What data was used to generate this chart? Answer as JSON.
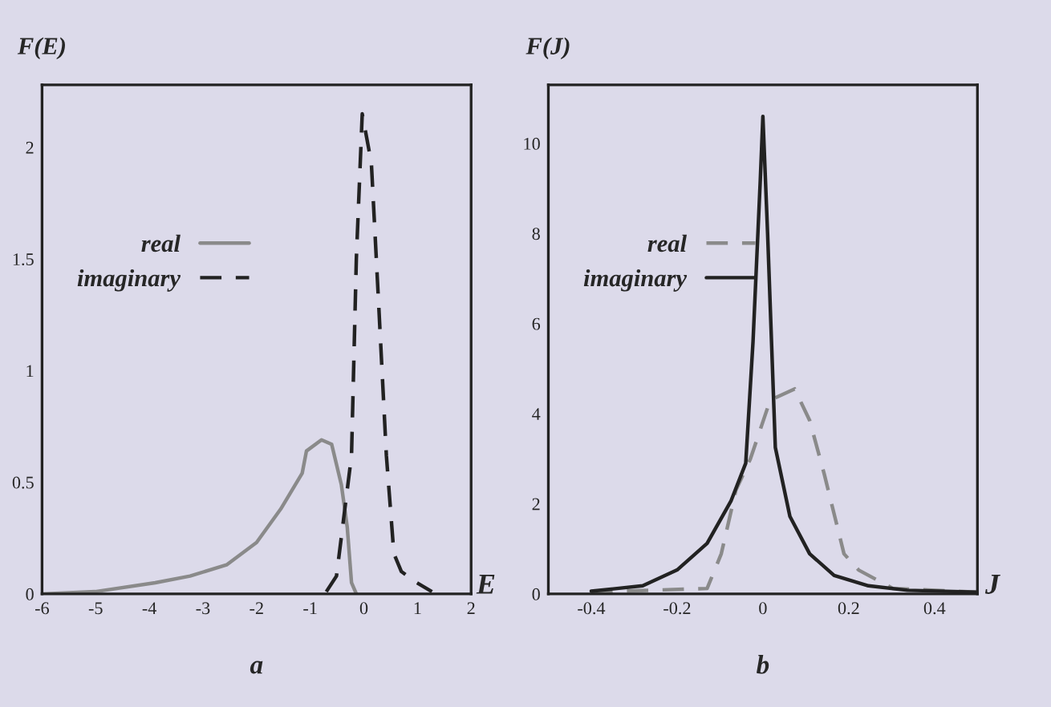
{
  "chart_data": [
    {
      "type": "line",
      "xlabel": "E",
      "ylabel": "F(E)",
      "annotations": [
        "a"
      ],
      "xlim": [
        -6,
        2
      ],
      "ylim": [
        0,
        2.28
      ],
      "xticks": [
        -6,
        -5,
        -4,
        -3,
        -2,
        -1,
        0,
        1,
        2
      ],
      "yticks": [
        0,
        0.5,
        1,
        1.5,
        2
      ],
      "grid": false,
      "legend": "left",
      "marker": "none",
      "series": [
        {
          "name": "real",
          "color": "#8a8a8a",
          "line_style": "solid",
          "x": [
            -6,
            -5.01,
            -3.89,
            -3.24,
            -2.56,
            -2.0,
            -1.55,
            -1.15,
            -1.07,
            -0.79,
            -0.6,
            -0.42,
            -0.31,
            -0.23,
            -0.14
          ],
          "values": [
            0,
            0.01,
            0.05,
            0.08,
            0.13,
            0.23,
            0.38,
            0.54,
            0.64,
            0.69,
            0.67,
            0.49,
            0.3,
            0.05,
            0
          ]
        },
        {
          "name": "imaginary",
          "color": "#222222",
          "line_style": "dashed",
          "x": [
            -0.7,
            -0.51,
            -0.23,
            -0.14,
            -0.03,
            0.14,
            0.28,
            0.42,
            0.56,
            0.7,
            0.99,
            1.27
          ],
          "values": [
            0.01,
            0.08,
            0.62,
            1.5,
            2.15,
            1.93,
            1.28,
            0.62,
            0.18,
            0.1,
            0.05,
            0.01
          ]
        }
      ]
    },
    {
      "type": "line",
      "xlabel": "J",
      "ylabel": "F(J)",
      "annotations": [
        "b"
      ],
      "xlim": [
        -0.5,
        0.5
      ],
      "ylim": [
        0,
        11.3
      ],
      "xticks": [
        -0.4,
        -0.2,
        0,
        0.2,
        0.4
      ],
      "yticks": [
        0,
        2,
        4,
        6,
        8,
        10
      ],
      "grid": false,
      "legend": "left",
      "marker": "none",
      "series": [
        {
          "name": "real",
          "color": "#8a8a8a",
          "line_style": "dashed",
          "x": [
            -0.4,
            -0.13,
            -0.097,
            -0.063,
            -0.029,
            0.017,
            0.074,
            0.109,
            0.143,
            0.189,
            0.223,
            0.303,
            0.497
          ],
          "values": [
            0.04,
            0.12,
            0.89,
            2.3,
            3.0,
            4.3,
            4.55,
            3.85,
            2.66,
            0.89,
            0.53,
            0.12,
            0.04
          ]
        },
        {
          "name": "imaginary",
          "color": "#222222",
          "line_style": "solid",
          "x": [
            -0.4,
            -0.28,
            -0.2,
            -0.13,
            -0.074,
            -0.04,
            -0.023,
            -0.006,
            0,
            0.011,
            0.029,
            0.063,
            0.109,
            0.166,
            0.246,
            0.337,
            0.497
          ],
          "values": [
            0.06,
            0.18,
            0.53,
            1.12,
            2.07,
            2.9,
            5.6,
            9.2,
            10.6,
            8.0,
            3.25,
            1.72,
            0.89,
            0.41,
            0.18,
            0.08,
            0.04
          ]
        }
      ]
    }
  ]
}
